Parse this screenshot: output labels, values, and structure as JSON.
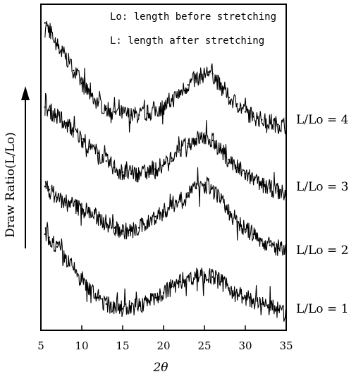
{
  "chart_data": {
    "type": "line",
    "title": "",
    "xlabel": "2θ",
    "ylabel": "Draw Ratio(L/Lo)",
    "xlim": [
      5,
      35
    ],
    "xticks": [
      5,
      10,
      15,
      20,
      25,
      30,
      35
    ],
    "grid": false,
    "legend": "none",
    "annotations": [
      "Lo: length before stretching",
      "L:  length after stretching"
    ],
    "y_axis_arrow": "upward",
    "series": [
      {
        "name": "L/Lo=4",
        "x": [
          5.5,
          6,
          7,
          8,
          9,
          10,
          11,
          12,
          13,
          14,
          15,
          16,
          17,
          18,
          19,
          20,
          21,
          22,
          23,
          24,
          25,
          25.5,
          26,
          26.5,
          27,
          28,
          29,
          30,
          31,
          32,
          33,
          34,
          35
        ],
        "y": [
          9.5,
          9.3,
          8.8,
          8.45,
          8.0,
          7.6,
          7.25,
          7.0,
          6.8,
          6.7,
          6.65,
          6.6,
          6.6,
          6.65,
          6.75,
          6.85,
          7.05,
          7.3,
          7.55,
          7.75,
          7.9,
          7.95,
          7.9,
          7.7,
          7.45,
          7.15,
          6.95,
          6.7,
          6.55,
          6.45,
          6.35,
          6.3,
          6.25
        ]
      },
      {
        "name": "L/Lo=3",
        "x": [
          5.5,
          6,
          7,
          8,
          9,
          10,
          11,
          12,
          13,
          14,
          15,
          16,
          17,
          18,
          19,
          20,
          21,
          22,
          23,
          24,
          25,
          26,
          27,
          28,
          29,
          30,
          31,
          32,
          33,
          34,
          35
        ],
        "y": [
          6.85,
          6.75,
          6.55,
          6.35,
          6.1,
          5.85,
          5.6,
          5.4,
          5.15,
          4.95,
          4.8,
          4.75,
          4.75,
          4.8,
          4.9,
          5.05,
          5.25,
          5.5,
          5.7,
          5.85,
          5.9,
          5.8,
          5.5,
          5.2,
          4.95,
          4.75,
          4.55,
          4.4,
          4.3,
          4.2,
          4.1
        ]
      },
      {
        "name": "L/Lo=2",
        "x": [
          5.5,
          6,
          7,
          8,
          9,
          10,
          11,
          12,
          13,
          14,
          15,
          16,
          17,
          18,
          19,
          20,
          21,
          22,
          23,
          24,
          25,
          26,
          27,
          28,
          29,
          30,
          31,
          32,
          33,
          34,
          35
        ],
        "y": [
          4.35,
          4.25,
          4.0,
          3.85,
          3.75,
          3.65,
          3.55,
          3.35,
          3.2,
          3.05,
          2.95,
          2.95,
          3.05,
          3.2,
          3.4,
          3.55,
          3.75,
          3.95,
          4.15,
          4.3,
          4.4,
          4.3,
          3.9,
          3.55,
          3.25,
          3.0,
          2.85,
          2.65,
          2.5,
          2.4,
          2.3
        ]
      },
      {
        "name": "L/Lo=1",
        "x": [
          5.5,
          6,
          7,
          8,
          9,
          10,
          11,
          12,
          13,
          14,
          15,
          16,
          17,
          18,
          19,
          20,
          21,
          22,
          23,
          24,
          25,
          26,
          27,
          28,
          29,
          30,
          31,
          32,
          33,
          34,
          35
        ],
        "y": [
          2.85,
          2.75,
          2.45,
          2.1,
          1.75,
          1.45,
          1.1,
          0.85,
          0.65,
          0.55,
          0.5,
          0.55,
          0.6,
          0.7,
          0.85,
          1.0,
          1.2,
          1.35,
          1.5,
          1.55,
          1.55,
          1.5,
          1.35,
          1.15,
          1.0,
          0.85,
          0.75,
          0.65,
          0.55,
          0.45,
          0.35
        ]
      }
    ],
    "series_labels": [
      "L/Lo = 4",
      "L/Lo = 3",
      "L/Lo = 2",
      "L/Lo = 1"
    ]
  }
}
